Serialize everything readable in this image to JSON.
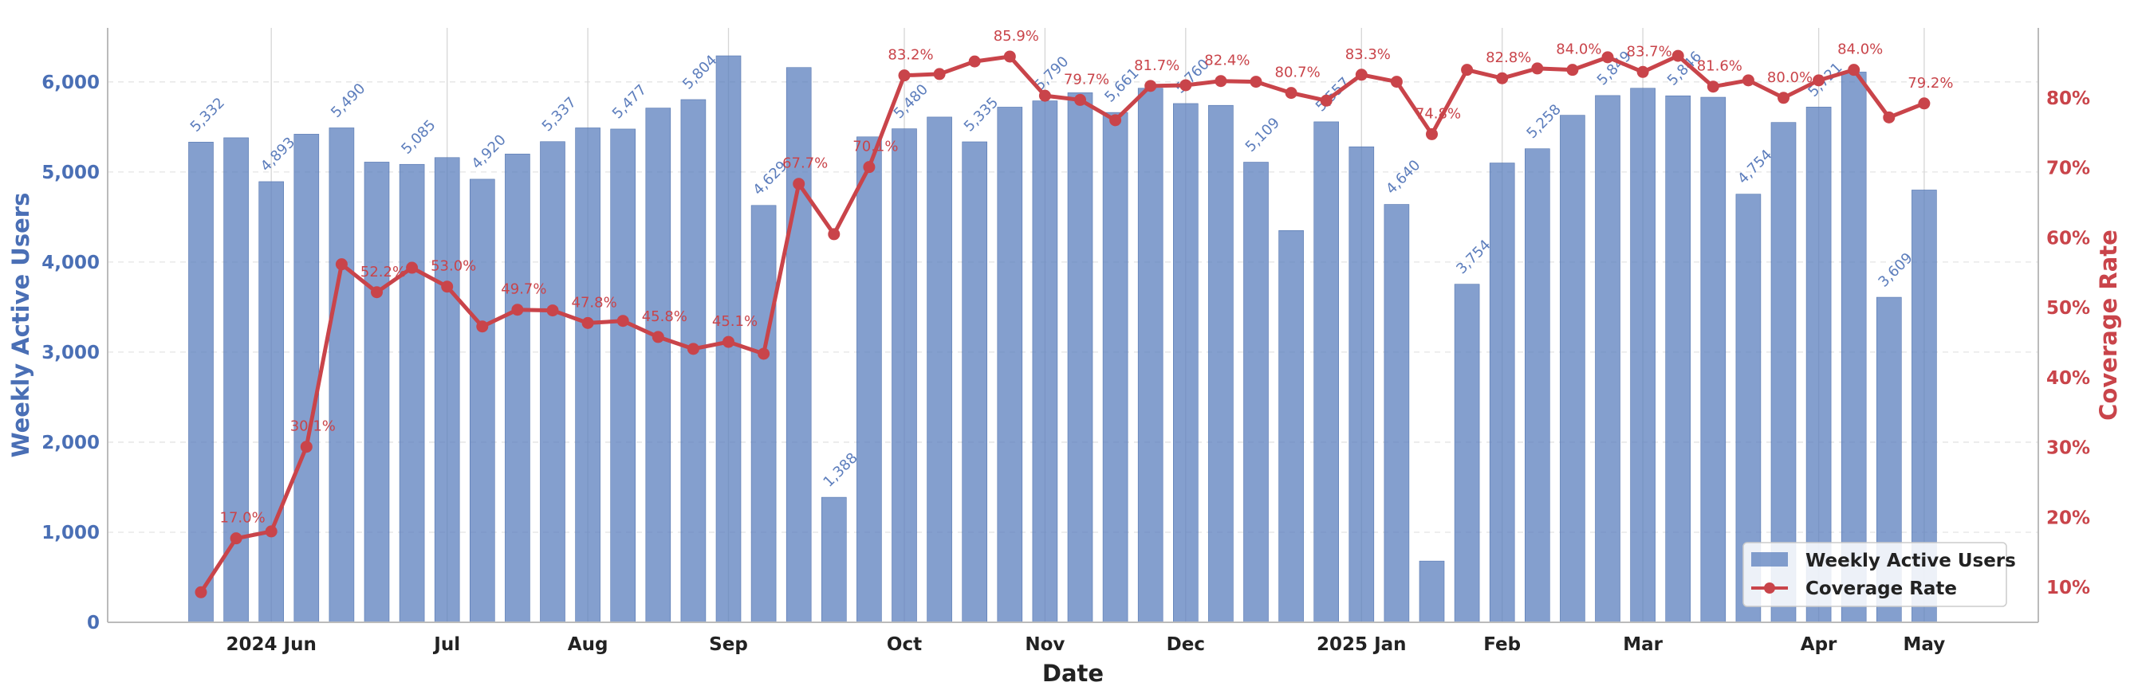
{
  "chart_data": {
    "type": "bar+line",
    "xlabel": "Date",
    "y_left_label": "Weekly Active Users",
    "y_right_label": "Coverage Rate",
    "y_left_lim": [
      0,
      6600
    ],
    "y_left_ticks": [
      "0",
      "1,000",
      "2,000",
      "3,000",
      "4,000",
      "5,000",
      "6,000"
    ],
    "y_left_tick_values": [
      0,
      1000,
      2000,
      3000,
      4000,
      5000,
      6000
    ],
    "y_right_lim": [
      5,
      90
    ],
    "y_right_ticks": [
      "10%",
      "20%",
      "30%",
      "40%",
      "50%",
      "60%",
      "70%",
      "80%"
    ],
    "y_right_tick_values": [
      10,
      20,
      30,
      40,
      50,
      60,
      70,
      80
    ],
    "x_tick_labels": [
      "2024 Jun",
      "Jul",
      "Aug",
      "Sep",
      "Oct",
      "Nov",
      "Dec",
      "2025 Jan",
      "Feb",
      "Mar",
      "Apr",
      "May"
    ],
    "x_tick_positions": [
      2.0,
      7.0,
      11.0,
      15.0,
      20.0,
      24.0,
      28.0,
      33.0,
      37.0,
      41.0,
      46.0,
      49.0
    ],
    "legend_position": "bottom-right",
    "grid": true,
    "colors": {
      "bars": "#5b7fbd",
      "line": "#c9444a",
      "left_axis": "#4a6fb5",
      "right_axis": "#c9444a"
    },
    "series": [
      {
        "name": "Weekly Active Users",
        "type": "bar",
        "values": [
          5332,
          5380,
          4893,
          5420,
          5490,
          5110,
          5085,
          5160,
          4920,
          5200,
          5337,
          5490,
          5477,
          5710,
          5804,
          6290,
          4629,
          6160,
          1388,
          5390,
          5480,
          5610,
          5335,
          5720,
          5790,
          5880,
          5661,
          5930,
          5760,
          5740,
          5109,
          4350,
          5557,
          5280,
          4640,
          680,
          3754,
          5100,
          5258,
          5630,
          5849,
          5930,
          5846,
          5830,
          4754,
          5550,
          5721,
          6110,
          3609,
          4800
        ],
        "labels": [
          "5,332",
          "",
          "4,893",
          "",
          "5,490",
          "",
          "5,085",
          "",
          "4,920",
          "",
          "5,337",
          "",
          "5,477",
          "",
          "5,804",
          "",
          "4,629",
          "",
          "1,388",
          "",
          "5,480",
          "",
          "5,335",
          "",
          "5,790",
          "",
          "5,661",
          "",
          "5,760",
          "",
          "5,109",
          "",
          "5,557",
          "",
          "4,640",
          "",
          "3,754",
          "",
          "5,258",
          "",
          "5,849",
          "",
          "5,846",
          "",
          "4,754",
          "",
          "5,721",
          "",
          "3,609",
          ""
        ]
      },
      {
        "name": "Coverage Rate",
        "type": "line",
        "values": [
          9.3,
          17.0,
          18.0,
          30.1,
          56.2,
          52.2,
          55.7,
          53.0,
          47.3,
          49.7,
          49.6,
          47.8,
          48.1,
          45.8,
          44.1,
          45.1,
          43.4,
          67.7,
          60.5,
          70.1,
          83.2,
          83.4,
          85.2,
          85.9,
          80.3,
          79.7,
          76.8,
          81.7,
          81.8,
          82.4,
          82.3,
          80.7,
          79.6,
          83.3,
          82.3,
          74.8,
          84.0,
          82.8,
          84.2,
          84.0,
          85.8,
          83.7,
          86.0,
          81.6,
          82.5,
          80.0,
          82.5,
          84.0,
          77.2,
          79.2
        ],
        "labels": [
          "",
          "17.0%",
          "",
          "30.1%",
          "",
          "52.2%",
          "",
          "53.0%",
          "",
          "49.7%",
          "",
          "47.8%",
          "",
          "45.8%",
          "",
          "45.1%",
          "",
          "67.7%",
          "",
          "70.1%",
          "83.2%",
          "",
          "",
          "85.9%",
          "",
          "79.7%",
          "",
          "81.7%",
          "",
          "82.4%",
          "",
          "80.7%",
          "",
          "83.3%",
          "",
          "74.8%",
          "",
          "82.8%",
          "",
          "84.0%",
          "",
          "83.7%",
          "",
          "81.6%",
          "",
          "80.0%",
          "",
          "84.0%",
          "",
          "79.2%"
        ]
      }
    ]
  }
}
